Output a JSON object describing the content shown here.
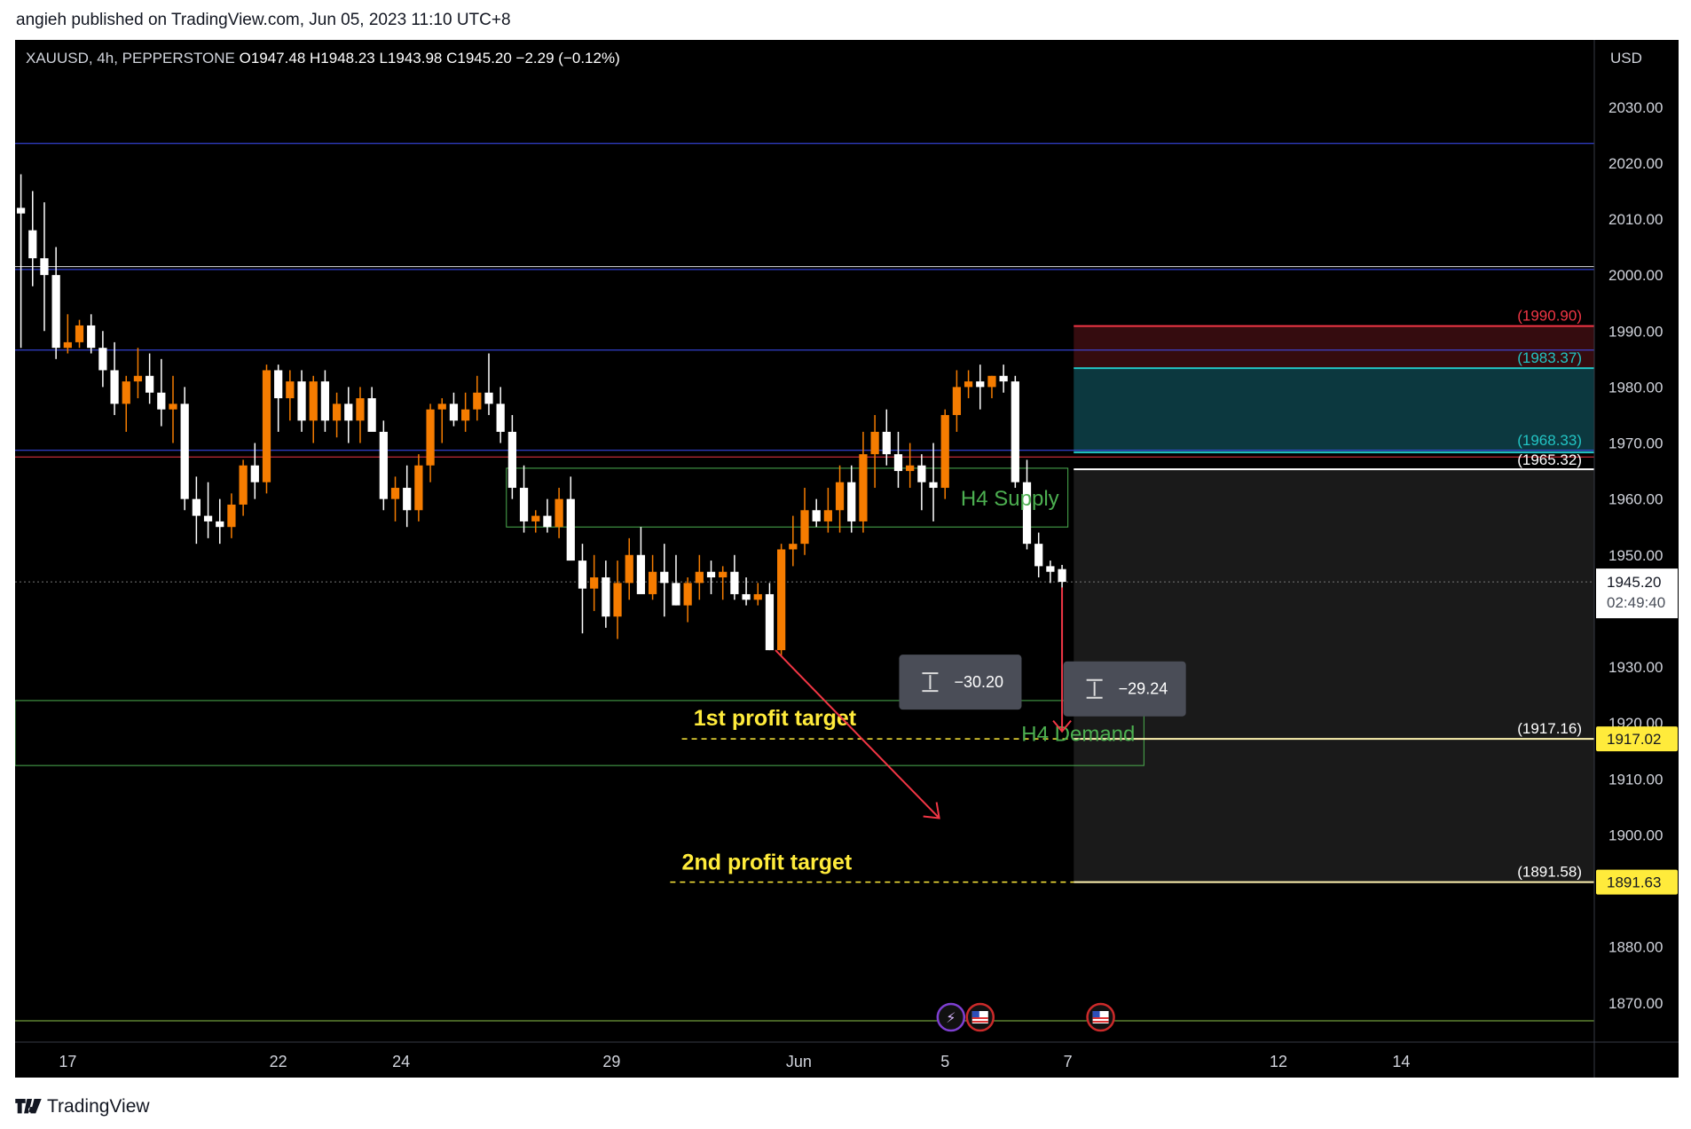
{
  "published_line": "angieh published on TradingView.com, Jun 05, 2023 11:10 UTC+8",
  "brand": "TradingView",
  "colors": {
    "up": "#f57c00",
    "down": "#ffffff",
    "supply_zone": "#4caf50",
    "hline_blue": "#3f51ff",
    "stop_red": "#f23645",
    "teal": "#22c4c4",
    "target_yellow": "#ffeb3b",
    "arrow_red": "#f23645"
  },
  "chart_data": {
    "type": "candlestick",
    "symbol_line": {
      "symbol": "XAUUSD, 4h, PEPPERSTONE",
      "open": "O1947.48",
      "high": "H1948.23",
      "low": "L1943.98",
      "close": "C1945.20",
      "change": "−2.29 (−0.12%)"
    },
    "currency": "USD",
    "ylim": [
      1863,
      2042
    ],
    "y_ticks": [
      "2030.00",
      "2020.00",
      "2010.00",
      "2000.00",
      "1990.00",
      "1980.00",
      "1970.00",
      "1960.00",
      "1950.00",
      "1930.00",
      "1920.00",
      "1910.00",
      "1900.00",
      "1880.00",
      "1870.00"
    ],
    "x_tick_labels": [
      "17",
      "22",
      "24",
      "29",
      "Jun",
      "5",
      "7",
      "12",
      "14"
    ],
    "x_tick_bar_index": [
      4,
      22,
      32.5,
      50.5,
      66.5,
      79,
      89.5,
      107.5,
      118
    ],
    "bar_count_span": 135,
    "candles": [
      [
        2012,
        2018,
        1987,
        2011
      ],
      [
        2008,
        2015,
        1998,
        2003
      ],
      [
        2003,
        2013,
        1990,
        2000
      ],
      [
        2000,
        2005,
        1985,
        1987
      ],
      [
        1987,
        1993,
        1986,
        1988
      ],
      [
        1988,
        1992,
        1987,
        1991
      ],
      [
        1991,
        1993,
        1986,
        1987
      ],
      [
        1987,
        1990,
        1980,
        1983
      ],
      [
        1983,
        1988,
        1975,
        1977
      ],
      [
        1977,
        1982,
        1972,
        1981
      ],
      [
        1981,
        1987,
        1978,
        1982
      ],
      [
        1982,
        1986,
        1977,
        1979
      ],
      [
        1979,
        1985,
        1973,
        1976
      ],
      [
        1976,
        1982,
        1970,
        1977
      ],
      [
        1977,
        1980,
        1958,
        1960
      ],
      [
        1960,
        1964,
        1952,
        1957
      ],
      [
        1957,
        1963,
        1953,
        1956
      ],
      [
        1956,
        1960,
        1952,
        1955
      ],
      [
        1955,
        1961,
        1953,
        1959
      ],
      [
        1959,
        1967,
        1957,
        1966
      ],
      [
        1966,
        1970,
        1960,
        1963
      ],
      [
        1963,
        1984,
        1961,
        1983
      ],
      [
        1983,
        1984,
        1972,
        1978
      ],
      [
        1978,
        1983,
        1974,
        1981
      ],
      [
        1981,
        1983,
        1972,
        1974
      ],
      [
        1974,
        1982,
        1970,
        1981
      ],
      [
        1981,
        1983,
        1972,
        1974
      ],
      [
        1974,
        1979,
        1971,
        1977
      ],
      [
        1977,
        1980,
        1970,
        1974
      ],
      [
        1974,
        1980,
        1970,
        1978
      ],
      [
        1978,
        1980,
        1973,
        1972
      ],
      [
        1972,
        1974,
        1958,
        1960
      ],
      [
        1960,
        1964,
        1956,
        1962
      ],
      [
        1962,
        1966,
        1955,
        1958
      ],
      [
        1958,
        1968,
        1956,
        1966
      ],
      [
        1966,
        1977,
        1963,
        1976
      ],
      [
        1976,
        1978,
        1970,
        1977
      ],
      [
        1977,
        1979,
        1973,
        1974
      ],
      [
        1974,
        1979,
        1972,
        1976
      ],
      [
        1976,
        1982,
        1974,
        1979
      ],
      [
        1979,
        1986,
        1975,
        1977
      ],
      [
        1977,
        1980,
        1970,
        1972
      ],
      [
        1972,
        1975,
        1960,
        1962
      ],
      [
        1962,
        1966,
        1954,
        1956
      ],
      [
        1956,
        1958,
        1954,
        1957
      ],
      [
        1957,
        1960,
        1954,
        1955
      ],
      [
        1955,
        1962,
        1953,
        1960
      ],
      [
        1960,
        1964,
        1950,
        1949
      ],
      [
        1949,
        1952,
        1936,
        1944
      ],
      [
        1944,
        1950,
        1940,
        1946
      ],
      [
        1946,
        1949,
        1937,
        1939
      ],
      [
        1939,
        1949,
        1935,
        1945
      ],
      [
        1945,
        1953,
        1942,
        1950
      ],
      [
        1950,
        1955,
        1944,
        1943
      ],
      [
        1943,
        1950,
        1942,
        1947
      ],
      [
        1947,
        1952,
        1939,
        1945
      ],
      [
        1945,
        1950,
        1941,
        1941
      ],
      [
        1941,
        1946,
        1938,
        1945
      ],
      [
        1945,
        1950,
        1942,
        1947
      ],
      [
        1947,
        1949,
        1943,
        1946
      ],
      [
        1946,
        1948,
        1942,
        1947
      ],
      [
        1947,
        1950,
        1942,
        1943
      ],
      [
        1943,
        1946,
        1941,
        1942
      ],
      [
        1942,
        1945,
        1941,
        1943
      ],
      [
        1943,
        1945,
        1933,
        1933
      ],
      [
        1933,
        1952,
        1932,
        1951
      ],
      [
        1951,
        1957,
        1948,
        1952
      ],
      [
        1952,
        1962,
        1950,
        1958
      ],
      [
        1958,
        1960,
        1955,
        1956
      ],
      [
        1956,
        1962,
        1954,
        1958
      ],
      [
        1958,
        1966,
        1954,
        1963
      ],
      [
        1963,
        1966,
        1954,
        1956
      ],
      [
        1956,
        1972,
        1954,
        1968
      ],
      [
        1968,
        1975,
        1962,
        1972
      ],
      [
        1972,
        1976,
        1966,
        1968
      ],
      [
        1968,
        1972,
        1962,
        1965
      ],
      [
        1965,
        1970,
        1962,
        1966
      ],
      [
        1966,
        1968,
        1958,
        1963
      ],
      [
        1963,
        1970,
        1956,
        1962
      ],
      [
        1962,
        1976,
        1960,
        1975
      ],
      [
        1975,
        1983,
        1972,
        1980
      ],
      [
        1980,
        1983,
        1978,
        1981
      ],
      [
        1981,
        1984,
        1976,
        1980
      ],
      [
        1980,
        1982,
        1978,
        1982
      ],
      [
        1982,
        1984,
        1979,
        1981
      ],
      [
        1981,
        1982,
        1962,
        1963
      ],
      [
        1963,
        1967,
        1951,
        1952
      ],
      [
        1952,
        1954,
        1946,
        1948
      ],
      [
        1948,
        1949,
        1945,
        1947
      ],
      [
        1947.48,
        1948.23,
        1943.98,
        1945.2
      ]
    ],
    "first_bar_time_slot": 0,
    "last_price": "1945.20",
    "countdown": "02:49:40",
    "horizontal_lines": [
      {
        "price": 2023.5,
        "color": "blue"
      },
      {
        "price": 2001.5,
        "color": "white"
      },
      {
        "price": 2001.0,
        "color": "blue"
      },
      {
        "price": 1986.6,
        "color": "blue"
      },
      {
        "price": 1968.7,
        "color": "blue"
      },
      {
        "price": 1967.5,
        "color": "red"
      },
      {
        "price": 1866.8,
        "color": "green"
      }
    ],
    "zones": [
      {
        "name": "H4 Supply",
        "top": 1965.5,
        "bottom": 1955.0,
        "from_bar": 41.5,
        "to_bar": 89.5
      },
      {
        "name": "H4 Demand",
        "top": 1924.0,
        "bottom": 1912.4,
        "from_bar": 0,
        "to_bar": 96
      }
    ],
    "position": {
      "from_bar": 90,
      "stop": "(1990.90)",
      "stop_price": 1990.9,
      "level_a": "(1983.37)",
      "level_a_price": 1983.37,
      "level_b": "(1968.33)",
      "level_b_price": 1968.33,
      "entry": "(1965.32)",
      "entry_price": 1965.32,
      "target1": "(1917.16)",
      "target1_price": 1917.16,
      "target1_tag": "1917.02",
      "target2": "(1891.58)",
      "target2_price": 1891.58,
      "target2_tag": "1891.63"
    },
    "annotations": {
      "first_target": "1st profit target",
      "second_target": "2nd profit target",
      "measure_a": "−30.20",
      "measure_b": "−29.24"
    }
  }
}
